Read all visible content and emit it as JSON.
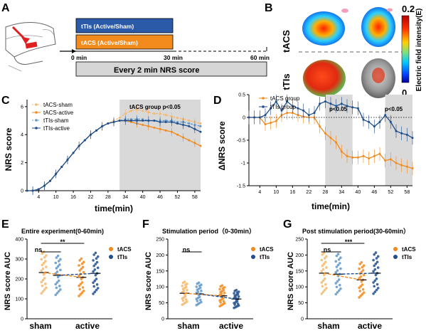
{
  "panels": {
    "A": {
      "label": "A",
      "bars": [
        {
          "text": "tTIs  (Active/Sham)",
          "color": "#2b5aa8"
        },
        {
          "text": "tACS (Active/Sham)",
          "color": "#f28a1c"
        }
      ],
      "timeline": {
        "start": "0 min",
        "mid": "30 min",
        "end": "60 min"
      },
      "nrs_box": "Every 2 min NRS score"
    },
    "B": {
      "label": "B",
      "row_labels": [
        "tACS",
        "tTIs"
      ],
      "colorbar": {
        "max": "0.2",
        "min": "0",
        "title": "Electric field intensity(E)"
      }
    },
    "C": {
      "label": "C",
      "ylabel": "NRS score",
      "xlabel": "time(min)",
      "annotation": "tACS group p<0.05",
      "legend": [
        "tACS-sham",
        "tACS-active",
        "tTIs-sham",
        "tTIs-active"
      ]
    },
    "D": {
      "label": "D",
      "ylabel": "ΔNRS score",
      "xlabel": "time(min)",
      "annotations": [
        "p<0.05",
        "p<0.05"
      ],
      "legend": [
        "tACS group",
        "tTIs group"
      ]
    },
    "E": {
      "label": "E",
      "title": "Entire experiment(0-60min)",
      "sig": [
        "ns",
        "**"
      ]
    },
    "F": {
      "label": "F",
      "title": "Stimulation period（0-30min）",
      "sig": [
        "ns"
      ]
    },
    "G": {
      "label": "G",
      "title": "Post stimulation period(30-60min）",
      "sig": [
        "ns",
        "***"
      ]
    },
    "bottom_common": {
      "ylabel": "NRS score AUC",
      "xcats": [
        "sham",
        "active"
      ],
      "legend": [
        "tACS",
        "tTIs"
      ]
    }
  },
  "colors": {
    "tacs": "#f28a1c",
    "tacs_light": "#f7b76a",
    "ttis": "#1f4e8c",
    "ttis_light": "#5f97c9",
    "shade": "#d9d9d9"
  },
  "chart_data": [
    {
      "type": "line",
      "panel": "C",
      "xlabel": "time(min)",
      "ylabel": "NRS score",
      "xticks": [
        4,
        10,
        16,
        22,
        28,
        34,
        40,
        46,
        52,
        58
      ],
      "yticks": [
        0,
        2,
        4,
        6
      ],
      "ylim": [
        0,
        6.5
      ],
      "shaded_range": [
        32,
        60
      ],
      "x": [
        0,
        2,
        4,
        6,
        8,
        10,
        12,
        14,
        16,
        18,
        20,
        22,
        24,
        26,
        28,
        30,
        32,
        34,
        36,
        38,
        40,
        42,
        44,
        46,
        48,
        50,
        52,
        54,
        56,
        58,
        60
      ],
      "series": [
        {
          "name": "tACS-sham",
          "values": [
            0,
            0,
            0.1,
            0.35,
            0.7,
            1.2,
            1.7,
            2.2,
            2.7,
            3.2,
            3.6,
            4.0,
            4.3,
            4.6,
            4.8,
            5.0,
            5.2,
            5.5,
            5.7,
            5.8,
            5.7,
            5.6,
            5.5,
            5.5,
            5.4,
            5.3,
            5.2,
            5.1,
            5.0,
            4.9,
            4.8
          ]
        },
        {
          "name": "tACS-active",
          "values": [
            0,
            0,
            0.1,
            0.35,
            0.7,
            1.2,
            1.7,
            2.2,
            2.7,
            3.2,
            3.6,
            4.0,
            4.3,
            4.6,
            4.8,
            4.9,
            5.0,
            5.0,
            4.9,
            4.8,
            4.7,
            4.6,
            4.5,
            4.4,
            4.3,
            4.2,
            4.0,
            3.8,
            3.6,
            3.4,
            3.2
          ]
        },
        {
          "name": "tTIs-sham",
          "values": [
            0,
            0,
            0.1,
            0.35,
            0.7,
            1.2,
            1.7,
            2.2,
            2.7,
            3.2,
            3.6,
            4.0,
            4.3,
            4.6,
            4.8,
            4.9,
            5.0,
            5.1,
            5.1,
            5.1,
            5.1,
            5.0,
            5.0,
            5.0,
            5.0,
            5.0,
            4.9,
            4.9,
            4.8,
            4.7,
            4.6
          ]
        },
        {
          "name": "tTIs-active",
          "values": [
            0,
            0,
            0.1,
            0.35,
            0.7,
            1.2,
            1.7,
            2.2,
            2.7,
            3.2,
            3.6,
            4.0,
            4.3,
            4.6,
            4.8,
            4.9,
            5.0,
            5.0,
            5.0,
            5.0,
            5.0,
            5.0,
            5.0,
            4.9,
            4.9,
            4.9,
            4.8,
            4.7,
            4.6,
            4.4,
            4.2
          ]
        }
      ]
    },
    {
      "type": "line",
      "panel": "D",
      "xlabel": "time(min)",
      "ylabel": "ΔNRS score",
      "xticks": [
        4,
        10,
        16,
        22,
        28,
        34,
        40,
        46,
        52,
        58
      ],
      "yticks": [
        0.5,
        0,
        -0.5,
        -1.0,
        -1.5
      ],
      "ylim": [
        -1.5,
        0.5
      ],
      "shaded_ranges": [
        [
          28,
          38
        ],
        [
          50,
          60
        ]
      ],
      "x": [
        0,
        2,
        4,
        6,
        8,
        10,
        12,
        14,
        16,
        18,
        20,
        22,
        24,
        26,
        28,
        30,
        32,
        34,
        36,
        38,
        40,
        42,
        44,
        46,
        48,
        50,
        52,
        54,
        56,
        58,
        60
      ],
      "series": [
        {
          "name": "tACS group",
          "values": [
            0,
            0,
            0,
            -0.15,
            -0.12,
            -0.08,
            0.05,
            0.1,
            0.1,
            0.05,
            0.02,
            0,
            0,
            -0.2,
            -0.35,
            -0.45,
            -0.55,
            -0.75,
            -0.85,
            -0.88,
            -0.88,
            -0.85,
            -0.9,
            -0.85,
            -0.8,
            -0.95,
            -0.92,
            -1.0,
            -1.05,
            -1.08,
            -1.12
          ]
        },
        {
          "name": "tTIs group",
          "values": [
            0,
            0,
            0,
            0.05,
            0.2,
            0.35,
            0.15,
            0.35,
            0.25,
            0.2,
            0.15,
            0.05,
            0.1,
            0.3,
            0.35,
            0.3,
            0.25,
            0.3,
            0.25,
            0.22,
            0.2,
            -0.05,
            -0.1,
            -0.2,
            -0.1,
            0.05,
            -0.1,
            -0.3,
            -0.35,
            -0.38,
            -0.45
          ]
        }
      ]
    },
    {
      "type": "scatter",
      "panel": "E",
      "ylabel": "NRS score AUC",
      "categories": [
        "sham",
        "active"
      ],
      "yticks": [
        0,
        100,
        200,
        300,
        400
      ],
      "ylim": [
        0,
        400
      ],
      "series": [
        {
          "name": "tACS",
          "means": [
            232,
            208
          ]
        },
        {
          "name": "tTIs",
          "means": [
            218,
            228
          ]
        }
      ],
      "significance": [
        {
          "pair": "sham",
          "label": "ns"
        },
        {
          "pair": "tACS sham vs active",
          "label": "**"
        }
      ]
    },
    {
      "type": "scatter",
      "panel": "F",
      "ylabel": "NRS score AUC",
      "categories": [
        "sham",
        "active"
      ],
      "yticks": [
        0,
        50,
        100,
        150,
        200,
        250
      ],
      "ylim": [
        0,
        250
      ],
      "series": [
        {
          "name": "tACS",
          "means": [
            80,
            72
          ]
        },
        {
          "name": "tTIs",
          "means": [
            78,
            62
          ]
        }
      ],
      "significance": [
        {
          "pair": "sham",
          "label": "ns"
        }
      ]
    },
    {
      "type": "scatter",
      "panel": "G",
      "ylabel": "NRS score AUC",
      "categories": [
        "sham",
        "active"
      ],
      "yticks": [
        0,
        50,
        100,
        150,
        200,
        250
      ],
      "ylim": [
        0,
        250
      ],
      "series": [
        {
          "name": "tACS",
          "means": [
            143,
            122
          ]
        },
        {
          "name": "tTIs",
          "means": [
            140,
            143
          ]
        }
      ],
      "significance": [
        {
          "pair": "sham",
          "label": "ns"
        },
        {
          "pair": "tACS sham vs active",
          "label": "***"
        }
      ]
    }
  ]
}
